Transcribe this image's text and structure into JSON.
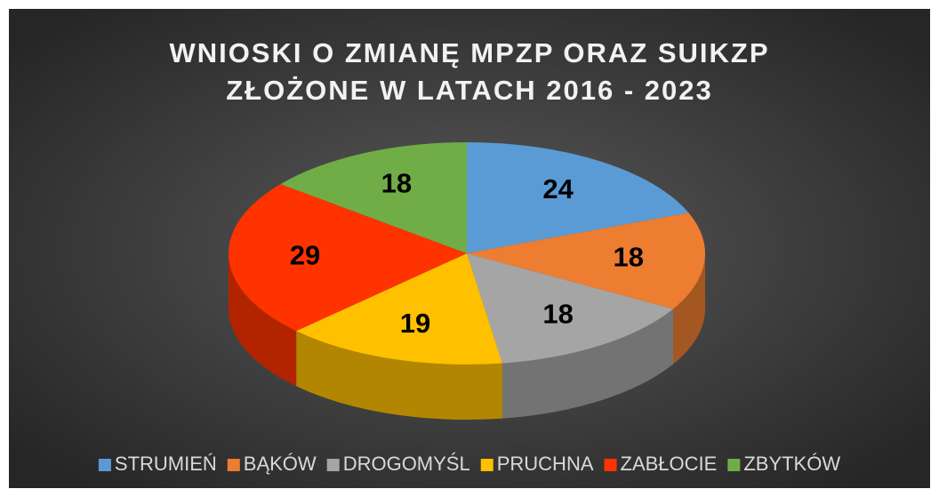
{
  "chart_data": {
    "type": "pie3d",
    "title": [
      "WNIOSKI O ZMIANĘ MPZP ORAZ SUIKZP",
      "ZŁOŻONE W LATACH 2016 - 2023"
    ],
    "categories": [
      "STRUMIEŃ",
      "BĄKÓW",
      "DROGOMYŚL",
      "PRUCHNA",
      "ZABŁOCIE",
      "ZBYTKÓW"
    ],
    "values": [
      24,
      18,
      18,
      19,
      29,
      18
    ],
    "colors": [
      "#5b9bd5",
      "#ed7d31",
      "#a5a5a5",
      "#ffc000",
      "#ff3300",
      "#70ad47"
    ],
    "legend": "bottom"
  }
}
